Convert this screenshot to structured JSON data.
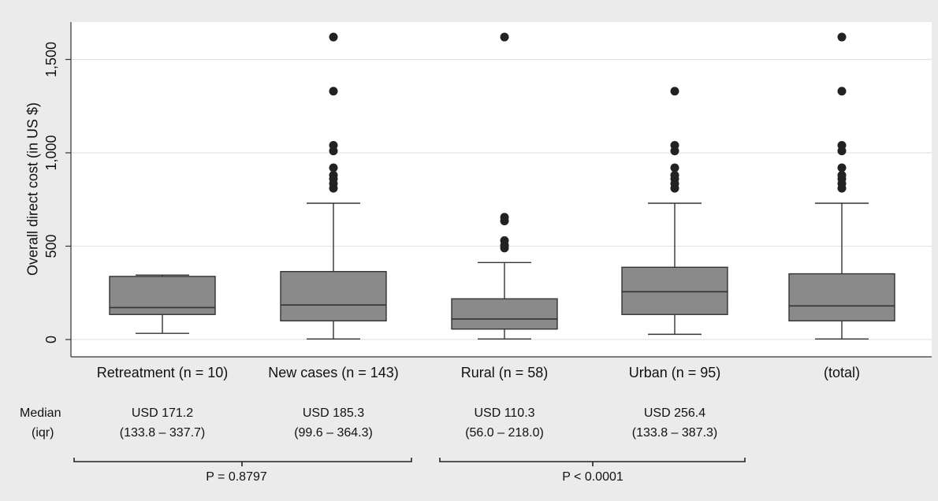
{
  "chart_data": {
    "type": "box",
    "ylabel": "Overall direct cost (in US $)",
    "ylim": [
      0,
      1700
    ],
    "yticks": [
      0,
      500,
      1000,
      1500
    ],
    "ytick_labels": [
      "0",
      "500",
      "1,000",
      "1,500"
    ],
    "grid": true,
    "categories": [
      "Retreatment (n = 10)",
      "New cases (n = 143)",
      "Rural (n = 58)",
      "Urban (n = 95)",
      "(total)"
    ],
    "boxes": [
      {
        "min": 33,
        "q1": 134,
        "median": 171,
        "q3": 338,
        "max": 345,
        "outliers": []
      },
      {
        "min": 3,
        "q1": 100,
        "median": 185,
        "q3": 364,
        "max": 730,
        "outliers": [
          810,
          835,
          860,
          880,
          920,
          1010,
          1040,
          1330,
          1620
        ]
      },
      {
        "min": 3,
        "q1": 56,
        "median": 110,
        "q3": 218,
        "max": 412,
        "outliers": [
          490,
          505,
          530,
          635,
          655,
          1620
        ]
      },
      {
        "min": 28,
        "q1": 134,
        "median": 256,
        "q3": 387,
        "max": 730,
        "outliers": [
          810,
          835,
          860,
          880,
          920,
          1010,
          1040,
          1330
        ]
      },
      {
        "min": 3,
        "q1": 100,
        "median": 180,
        "q3": 352,
        "max": 730,
        "outliers": [
          810,
          835,
          860,
          880,
          920,
          1010,
          1040,
          1330,
          1620
        ]
      }
    ]
  },
  "stats": {
    "row_label_1": "Median",
    "row_label_2": "(iqr)",
    "groups": [
      {
        "median": "USD 171.2",
        "iqr": "(133.8 – 337.7)"
      },
      {
        "median": "USD 185.3",
        "iqr": "(99.6 – 364.3)"
      },
      {
        "median": "USD 110.3",
        "iqr": "(56.0 – 218.0)"
      },
      {
        "median": "USD 256.4",
        "iqr": "(133.8 – 387.3)"
      }
    ],
    "pvalues": [
      "P = 0.8797",
      "P < 0.0001"
    ]
  },
  "colors": {
    "box_fill": "#8a8a8a",
    "outline": "#333333",
    "outlier": "#222222",
    "grid": "#e3e3e3",
    "plot_bg": "#ffffff",
    "page_bg": "#ebebeb"
  }
}
